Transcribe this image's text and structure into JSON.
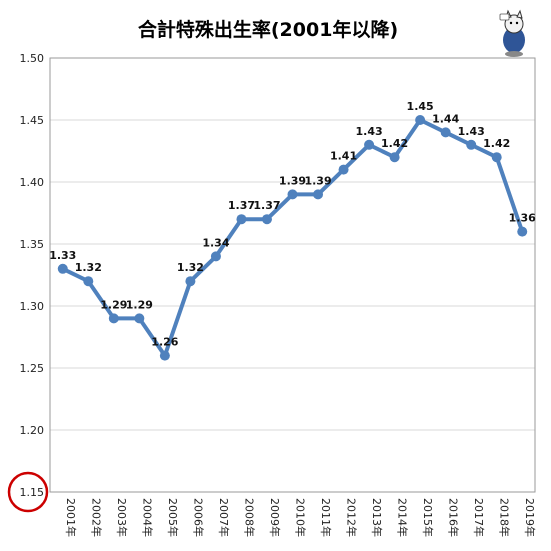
{
  "chart_data": {
    "type": "line",
    "title": "合計特殊出生率(2001年以降)",
    "xlabel": "",
    "ylabel": "",
    "categories": [
      "2001年",
      "2002年",
      "2003年",
      "2004年",
      "2005年",
      "2006年",
      "2007年",
      "2008年",
      "2009年",
      "2010年",
      "2011年",
      "2012年",
      "2013年",
      "2014年",
      "2015年",
      "2016年",
      "2017年",
      "2018年",
      "2019年"
    ],
    "series": [
      {
        "values": [
          1.33,
          1.32,
          1.29,
          1.29,
          1.26,
          1.32,
          1.34,
          1.37,
          1.37,
          1.39,
          1.39,
          1.41,
          1.43,
          1.42,
          1.45,
          1.44,
          1.43,
          1.42,
          1.36
        ]
      }
    ],
    "data_labels": [
      "1.33",
      "1.32",
      "1.29",
      "1.29",
      "1.26",
      "1.32",
      "1.34",
      "1.37",
      "1.37",
      "1.39",
      "1.39",
      "1.41",
      "1.43",
      "1.42",
      "1.45",
      "1.44",
      "1.43",
      "1.42",
      "1.36"
    ],
    "ylim": [
      1.15,
      1.5
    ],
    "yticks": [
      "1.15",
      "1.20",
      "1.25",
      "1.30",
      "1.35",
      "1.40",
      "1.45",
      "1.50"
    ],
    "grid": true,
    "legend": "none",
    "colors": {
      "line": "#4f81bd",
      "marker": "#4f81bd",
      "highlight_circle": "#cc0000"
    },
    "annotations": [
      "red circle around y-axis minimum 1.15"
    ],
    "icons": [
      "mascot-cat-icon"
    ]
  }
}
